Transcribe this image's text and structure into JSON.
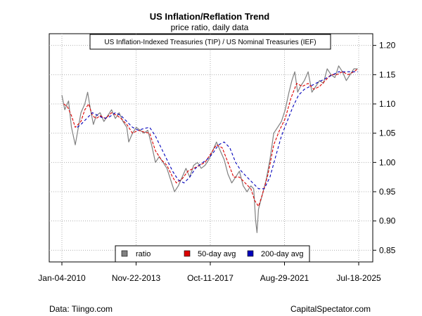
{
  "chart_data": {
    "type": "line",
    "title": "US Inflation/Reflation Trend",
    "subtitle": "price ratio, daily data",
    "annotation": "US Inflation-Indexed Treasuries (TIP) / US Nominal Treasuries (IEF)",
    "source_left": "Data: Tiingo.com",
    "source_right": "CapitalSpectator.com",
    "x_ticks": [
      "Jan-04-2010",
      "Nov-22-2013",
      "Oct-11-2017",
      "Aug-29-2021",
      "Jul-18-2025"
    ],
    "y_ticks": [
      "0.85",
      "0.90",
      "0.95",
      "1.00",
      "1.05",
      "1.10",
      "1.15",
      "1.20"
    ],
    "ylim": [
      0.83,
      1.22
    ],
    "grid": true,
    "legend_placement": "bottom-center",
    "series": [
      {
        "name": "ratio",
        "color": "#808080",
        "x": [
          2010.0,
          2010.15,
          2010.35,
          2010.5,
          2010.7,
          2011.0,
          2011.2,
          2011.35,
          2011.5,
          2011.65,
          2011.8,
          2012.0,
          2012.2,
          2012.4,
          2012.6,
          2012.8,
          2013.0,
          2013.2,
          2013.4,
          2013.5,
          2013.7,
          2013.9,
          2014.1,
          2014.3,
          2014.5,
          2014.7,
          2014.9,
          2015.1,
          2015.3,
          2015.5,
          2015.7,
          2015.9,
          2016.1,
          2016.3,
          2016.5,
          2016.7,
          2016.9,
          2017.1,
          2017.3,
          2017.5,
          2017.7,
          2017.9,
          2018.1,
          2018.3,
          2018.5,
          2018.7,
          2018.9,
          2019.1,
          2019.3,
          2019.5,
          2019.7,
          2019.9,
          2020.05,
          2020.15,
          2020.22,
          2020.3,
          2020.5,
          2020.7,
          2020.9,
          2021.1,
          2021.3,
          2021.5,
          2021.7,
          2021.9,
          2022.05,
          2022.2,
          2022.35,
          2022.5,
          2022.7,
          2022.9,
          2023.1,
          2023.3,
          2023.5,
          2023.7,
          2023.9,
          2024.1,
          2024.3,
          2024.5,
          2024.7,
          2024.9,
          2025.1,
          2025.3,
          2025.5
        ],
        "values": [
          1.115,
          1.09,
          1.105,
          1.06,
          1.03,
          1.085,
          1.1,
          1.12,
          1.09,
          1.065,
          1.08,
          1.085,
          1.07,
          1.08,
          1.09,
          1.075,
          1.085,
          1.07,
          1.06,
          1.035,
          1.05,
          1.06,
          1.055,
          1.05,
          1.055,
          1.03,
          1.0,
          1.01,
          1.0,
          0.99,
          0.97,
          0.95,
          0.96,
          0.975,
          0.99,
          0.975,
          0.995,
          1.0,
          0.99,
          0.995,
          1.005,
          1.02,
          1.035,
          1.02,
          1.005,
          0.98,
          0.965,
          0.975,
          0.985,
          0.96,
          0.95,
          0.96,
          0.955,
          0.9,
          0.88,
          0.92,
          0.945,
          0.97,
          1.005,
          1.05,
          1.06,
          1.07,
          1.09,
          1.12,
          1.14,
          1.155,
          1.12,
          1.13,
          1.14,
          1.155,
          1.12,
          1.13,
          1.14,
          1.135,
          1.16,
          1.15,
          1.145,
          1.165,
          1.155,
          1.14,
          1.15,
          1.16,
          1.16
        ]
      },
      {
        "name": "50-day avg",
        "color": "#dd0000",
        "x": [
          2010.1,
          2010.3,
          2010.5,
          2010.7,
          2011.0,
          2011.2,
          2011.4,
          2011.6,
          2011.8,
          2012.0,
          2012.3,
          2012.6,
          2012.9,
          2013.1,
          2013.4,
          2013.7,
          2014.0,
          2014.3,
          2014.6,
          2014.9,
          2015.2,
          2015.5,
          2015.8,
          2016.0,
          2016.3,
          2016.6,
          2016.9,
          2017.2,
          2017.5,
          2017.8,
          2018.1,
          2018.4,
          2018.7,
          2019.0,
          2019.3,
          2019.6,
          2019.9,
          2020.1,
          2020.3,
          2020.5,
          2020.8,
          2021.1,
          2021.4,
          2021.7,
          2022.0,
          2022.3,
          2022.6,
          2022.9,
          2023.2,
          2023.5,
          2023.8,
          2024.1,
          2024.4,
          2024.7,
          2025.0,
          2025.3,
          2025.5
        ],
        "values": [
          1.1,
          1.095,
          1.08,
          1.06,
          1.07,
          1.09,
          1.1,
          1.08,
          1.075,
          1.08,
          1.075,
          1.085,
          1.08,
          1.075,
          1.065,
          1.05,
          1.055,
          1.052,
          1.05,
          1.02,
          1.005,
          0.995,
          0.975,
          0.965,
          0.972,
          0.985,
          0.99,
          0.995,
          1.0,
          1.015,
          1.03,
          1.025,
          1.0,
          0.975,
          0.975,
          0.965,
          0.955,
          0.935,
          0.925,
          0.945,
          0.98,
          1.03,
          1.055,
          1.075,
          1.11,
          1.135,
          1.13,
          1.135,
          1.125,
          1.13,
          1.14,
          1.15,
          1.15,
          1.155,
          1.15,
          1.155,
          1.16
        ]
      },
      {
        "name": "200-day avg",
        "color": "#0000bb",
        "x": [
          2010.8,
          2011.0,
          2011.3,
          2011.6,
          2011.9,
          2012.2,
          2012.5,
          2012.8,
          2013.1,
          2013.4,
          2013.7,
          2014.0,
          2014.3,
          2014.6,
          2014.9,
          2015.2,
          2015.5,
          2015.8,
          2016.1,
          2016.4,
          2016.7,
          2017.0,
          2017.3,
          2017.6,
          2017.9,
          2018.2,
          2018.5,
          2018.8,
          2019.1,
          2019.4,
          2019.7,
          2020.0,
          2020.3,
          2020.6,
          2020.9,
          2021.2,
          2021.5,
          2021.8,
          2022.1,
          2022.4,
          2022.7,
          2023.0,
          2023.3,
          2023.6,
          2023.9,
          2024.2,
          2024.5,
          2024.8,
          2025.1,
          2025.5
        ],
        "values": [
          1.06,
          1.065,
          1.075,
          1.085,
          1.08,
          1.075,
          1.078,
          1.085,
          1.08,
          1.07,
          1.06,
          1.055,
          1.058,
          1.06,
          1.045,
          1.025,
          1.005,
          0.985,
          0.97,
          0.965,
          0.975,
          0.99,
          0.998,
          1.005,
          1.015,
          1.03,
          1.035,
          1.025,
          1.0,
          0.985,
          0.975,
          0.965,
          0.955,
          0.955,
          0.975,
          1.01,
          1.045,
          1.07,
          1.095,
          1.115,
          1.125,
          1.13,
          1.135,
          1.14,
          1.145,
          1.15,
          1.155,
          1.155,
          1.155,
          1.155
        ]
      }
    ]
  }
}
